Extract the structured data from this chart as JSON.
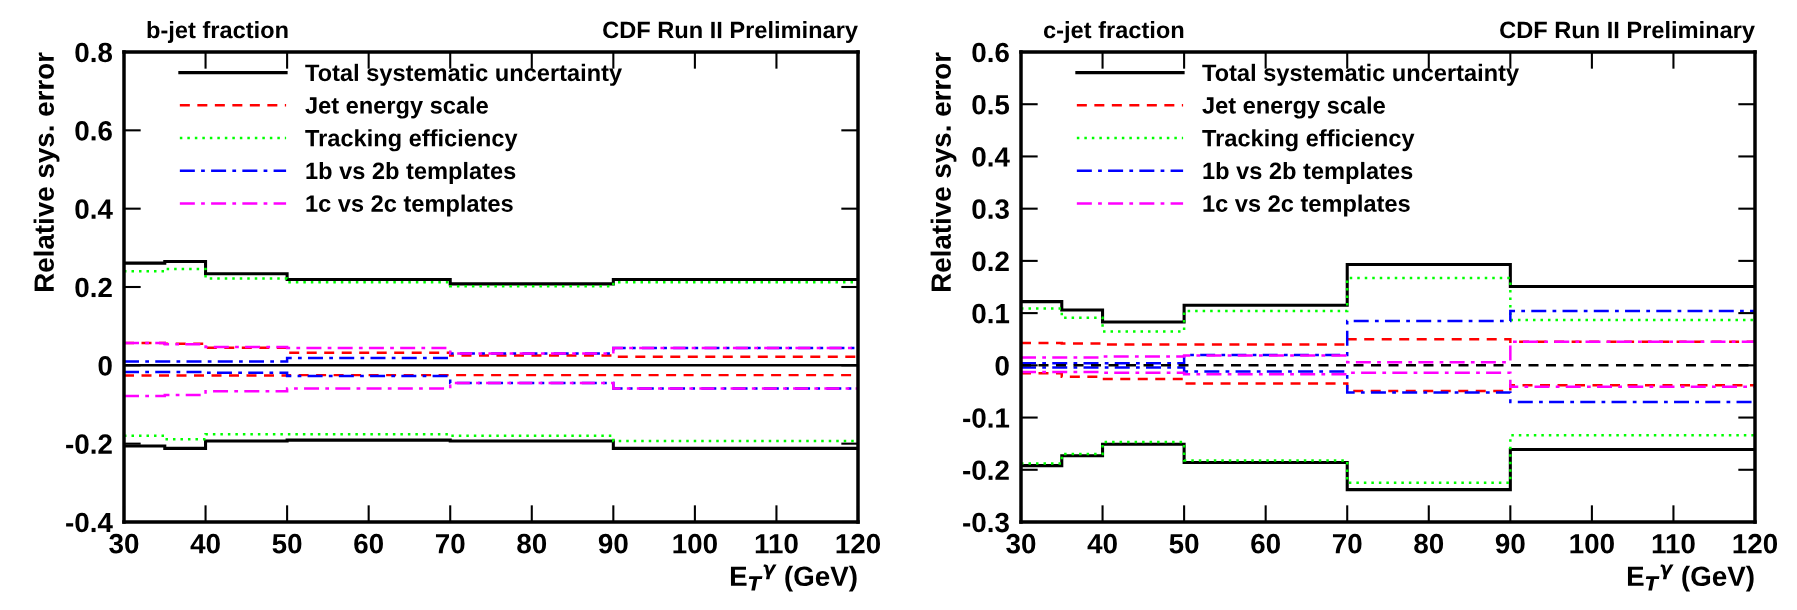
{
  "chart_data": [
    {
      "type": "histogram",
      "title": "b-jet fraction",
      "annotations": [
        "CDF Run II Preliminary"
      ],
      "xlabel": "E$_{T}$$^{γ}$ (GeV)",
      "ylabel": "Relative sys. error",
      "bins": [
        30,
        35,
        40,
        50,
        70,
        90,
        120
      ],
      "xlim": [
        30,
        120
      ],
      "xticks": [
        30,
        40,
        50,
        60,
        70,
        80,
        90,
        100,
        110,
        120
      ],
      "ylim": [
        -0.4,
        0.8
      ],
      "yticks": [
        -0.4,
        -0.2,
        0,
        0.2,
        0.4,
        0.6,
        0.8
      ],
      "legend": "top left",
      "ref_lines": [
        {
          "axis": "y",
          "value": 0,
          "color": "#000000",
          "line_style": "solid"
        }
      ],
      "series": [
        {
          "name": "Total systematic uncertainty",
          "color": "#000000",
          "line_style": "solid",
          "values": [
            0.261,
            0.265,
            0.234,
            0.219,
            0.208,
            0.219
          ]
        },
        {
          "color": "#000000",
          "line_style": "solid",
          "values": [
            -0.206,
            -0.212,
            -0.193,
            -0.191,
            -0.193,
            -0.212
          ]
        },
        {
          "name": "Jet energy scale",
          "color": "#ff0000",
          "line_style": "dashed",
          "values": [
            0.057,
            0.055,
            0.045,
            0.032,
            0.025,
            0.022
          ]
        },
        {
          "color": "#ff0000",
          "line_style": "dashed",
          "values": [
            -0.026,
            -0.026,
            -0.026,
            -0.025,
            -0.025,
            -0.025
          ]
        },
        {
          "name": "Tracking efficiency",
          "color": "#00ff00",
          "line_style": "dotted",
          "values": [
            0.24,
            0.246,
            0.222,
            0.212,
            0.202,
            0.212
          ]
        },
        {
          "color": "#00ff00",
          "line_style": "dotted",
          "values": [
            -0.18,
            -0.189,
            -0.176,
            -0.176,
            -0.18,
            -0.193
          ]
        },
        {
          "name": "1b vs 2b templates",
          "color": "#0000ff",
          "line_style": "dashdot",
          "values": [
            0.01,
            0.01,
            0.01,
            0.019,
            0.03,
            0.044
          ]
        },
        {
          "color": "#0000ff",
          "line_style": "dashdot",
          "values": [
            -0.017,
            -0.017,
            -0.019,
            -0.027,
            -0.045,
            -0.059
          ]
        },
        {
          "name": "1c vs 2c templates",
          "color": "#ff00ff",
          "line_style": "dashdot",
          "values": [
            0.057,
            0.054,
            0.047,
            0.044,
            0.03,
            0.044
          ]
        },
        {
          "color": "#ff00ff",
          "line_style": "dashdot",
          "values": [
            -0.078,
            -0.076,
            -0.066,
            -0.059,
            -0.045,
            -0.059
          ]
        }
      ]
    },
    {
      "type": "histogram",
      "title": "c-jet fraction",
      "annotations": [
        "CDF Run II Preliminary"
      ],
      "xlabel": "E$_{T}$$^{γ}$ (GeV)",
      "ylabel": "Relative sys. error",
      "bins": [
        30,
        35,
        40,
        50,
        70,
        90,
        120
      ],
      "xlim": [
        30,
        120
      ],
      "xticks": [
        30,
        40,
        50,
        60,
        70,
        80,
        90,
        100,
        110,
        120
      ],
      "ylim": [
        -0.3,
        0.6
      ],
      "yticks": [
        -0.3,
        -0.2,
        -0.1,
        0,
        0.1,
        0.2,
        0.3,
        0.4,
        0.5,
        0.6
      ],
      "legend": "top left",
      "ref_lines": [
        {
          "axis": "y",
          "value": 0,
          "color": "#000000",
          "line_style": "dashed"
        }
      ],
      "series": [
        {
          "name": "Total systematic uncertainty",
          "color": "#000000",
          "line_style": "solid",
          "values": [
            0.122,
            0.106,
            0.083,
            0.115,
            0.193,
            0.151
          ]
        },
        {
          "color": "#000000",
          "line_style": "solid",
          "values": [
            -0.192,
            -0.173,
            -0.151,
            -0.186,
            -0.238,
            -0.161
          ]
        },
        {
          "name": "Jet energy scale",
          "color": "#ff0000",
          "line_style": "dashed",
          "values": [
            0.043,
            0.042,
            0.04,
            0.04,
            0.05,
            0.045
          ]
        },
        {
          "color": "#ff0000",
          "line_style": "dashed",
          "values": [
            -0.015,
            -0.022,
            -0.026,
            -0.035,
            -0.049,
            -0.038
          ]
        },
        {
          "name": "Tracking efficiency",
          "color": "#00ff00",
          "line_style": "dotted",
          "values": [
            0.109,
            0.091,
            0.065,
            0.104,
            0.167,
            0.087
          ]
        },
        {
          "color": "#00ff00",
          "line_style": "dotted",
          "values": [
            -0.188,
            -0.17,
            -0.147,
            -0.182,
            -0.225,
            -0.134
          ]
        },
        {
          "name": "1b vs 2b templates",
          "color": "#0000ff",
          "line_style": "dashdot",
          "values": [
            0.004,
            0.004,
            0.004,
            0.02,
            0.085,
            0.104
          ]
        },
        {
          "color": "#0000ff",
          "line_style": "dashdot",
          "values": [
            -0.004,
            -0.004,
            -0.004,
            -0.012,
            -0.052,
            -0.07
          ]
        },
        {
          "name": "1c vs 2c templates",
          "color": "#ff00ff",
          "line_style": "dashdot",
          "values": [
            0.015,
            0.015,
            0.017,
            0.019,
            0.006,
            0.045
          ]
        },
        {
          "color": "#ff00ff",
          "line_style": "dashdot",
          "values": [
            -0.013,
            -0.013,
            -0.014,
            -0.017,
            -0.014,
            -0.041
          ]
        }
      ]
    }
  ]
}
